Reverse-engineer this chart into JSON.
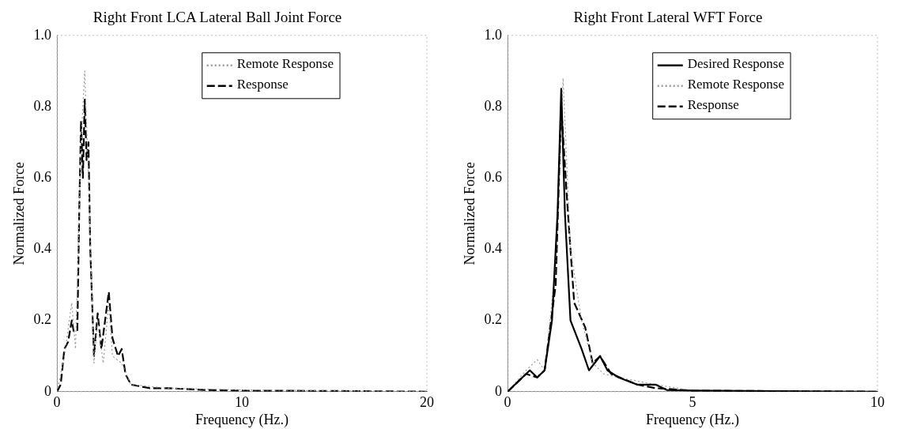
{
  "chart_data": [
    {
      "type": "line",
      "title": "Right Front LCA Lateral Ball Joint Force",
      "xlabel": "Frequency (Hz.)",
      "ylabel": "Normalized Force",
      "xlim": [
        0,
        20
      ],
      "xticks": [
        0,
        10,
        20
      ],
      "ylim": [
        0,
        1
      ],
      "yticks": [
        0,
        0.2,
        0.4,
        0.6,
        0.8,
        {
          "value": 1,
          "label": "1.0"
        }
      ],
      "legend": "top right",
      "series": [
        {
          "name": "Remote Response",
          "color": "#999999",
          "line_style": "dotted",
          "x": [
            0,
            0.4,
            0.8,
            1.0,
            1.3,
            1.5,
            1.7,
            2.0,
            2.2,
            2.5,
            2.8,
            3.0,
            3.5,
            4,
            6,
            10,
            20
          ],
          "values": [
            0,
            0.1,
            0.25,
            0.12,
            0.7,
            0.9,
            0.6,
            0.08,
            0.2,
            0.08,
            0.25,
            0.1,
            0.08,
            0.02,
            0.01,
            0.005,
            0
          ]
        },
        {
          "name": "Response",
          "color": "#000000",
          "line_style": "dashed",
          "x": [
            0,
            0.2,
            0.4,
            0.6,
            0.8,
            0.9,
            1.1,
            1.2,
            1.3,
            1.4,
            1.5,
            1.6,
            1.7,
            1.8,
            2.0,
            2.2,
            2.4,
            2.6,
            2.8,
            3.0,
            3.3,
            3.5,
            3.7,
            4,
            5,
            6,
            8,
            10,
            15,
            20
          ],
          "values": [
            0,
            0.02,
            0.12,
            0.14,
            0.2,
            0.17,
            0.17,
            0.5,
            0.76,
            0.6,
            0.82,
            0.65,
            0.7,
            0.4,
            0.1,
            0.22,
            0.12,
            0.2,
            0.28,
            0.15,
            0.1,
            0.12,
            0.05,
            0.02,
            0.01,
            0.01,
            0.005,
            0.003,
            0.002,
            0
          ]
        }
      ]
    },
    {
      "type": "line",
      "title": "Right Front Lateral WFT Force",
      "xlabel": "Frequency (Hz.)",
      "ylabel": "Normalized Force",
      "xlim": [
        0,
        10
      ],
      "xticks": [
        0,
        5,
        10
      ],
      "ylim": [
        0,
        1
      ],
      "yticks": [
        0,
        0.2,
        0.4,
        0.6,
        0.8,
        {
          "value": 1,
          "label": "1.0"
        }
      ],
      "legend": "top right",
      "series": [
        {
          "name": "Desired Response",
          "color": "#000000",
          "line_style": "solid",
          "x": [
            0,
            0.3,
            0.6,
            0.8,
            1.0,
            1.2,
            1.35,
            1.45,
            1.55,
            1.7,
            2.0,
            2.2,
            2.5,
            2.7,
            3.0,
            3.5,
            4,
            4.3,
            5,
            10
          ],
          "values": [
            0,
            0.03,
            0.06,
            0.04,
            0.06,
            0.2,
            0.5,
            0.85,
            0.5,
            0.2,
            0.12,
            0.06,
            0.1,
            0.06,
            0.04,
            0.02,
            0.02,
            0.005,
            0.003,
            0
          ]
        },
        {
          "name": "Remote Response",
          "color": "#999999",
          "line_style": "dotted",
          "x": [
            0,
            0.5,
            0.8,
            1.0,
            1.3,
            1.5,
            1.7,
            2.0,
            2.3,
            2.6,
            3,
            3.5,
            4,
            5,
            10
          ],
          "values": [
            0,
            0.06,
            0.09,
            0.06,
            0.35,
            0.88,
            0.4,
            0.2,
            0.08,
            0.05,
            0.04,
            0.03,
            0.02,
            0.003,
            0
          ]
        },
        {
          "name": "Response",
          "color": "#000000",
          "line_style": "dashed",
          "x": [
            0,
            0.5,
            0.8,
            1.0,
            1.3,
            1.45,
            1.6,
            1.8,
            2.1,
            2.3,
            2.5,
            2.8,
            3.5,
            4,
            5,
            10
          ],
          "values": [
            0,
            0.05,
            0.04,
            0.06,
            0.3,
            0.8,
            0.55,
            0.25,
            0.18,
            0.08,
            0.1,
            0.05,
            0.02,
            0.01,
            0.003,
            0
          ]
        }
      ]
    }
  ]
}
